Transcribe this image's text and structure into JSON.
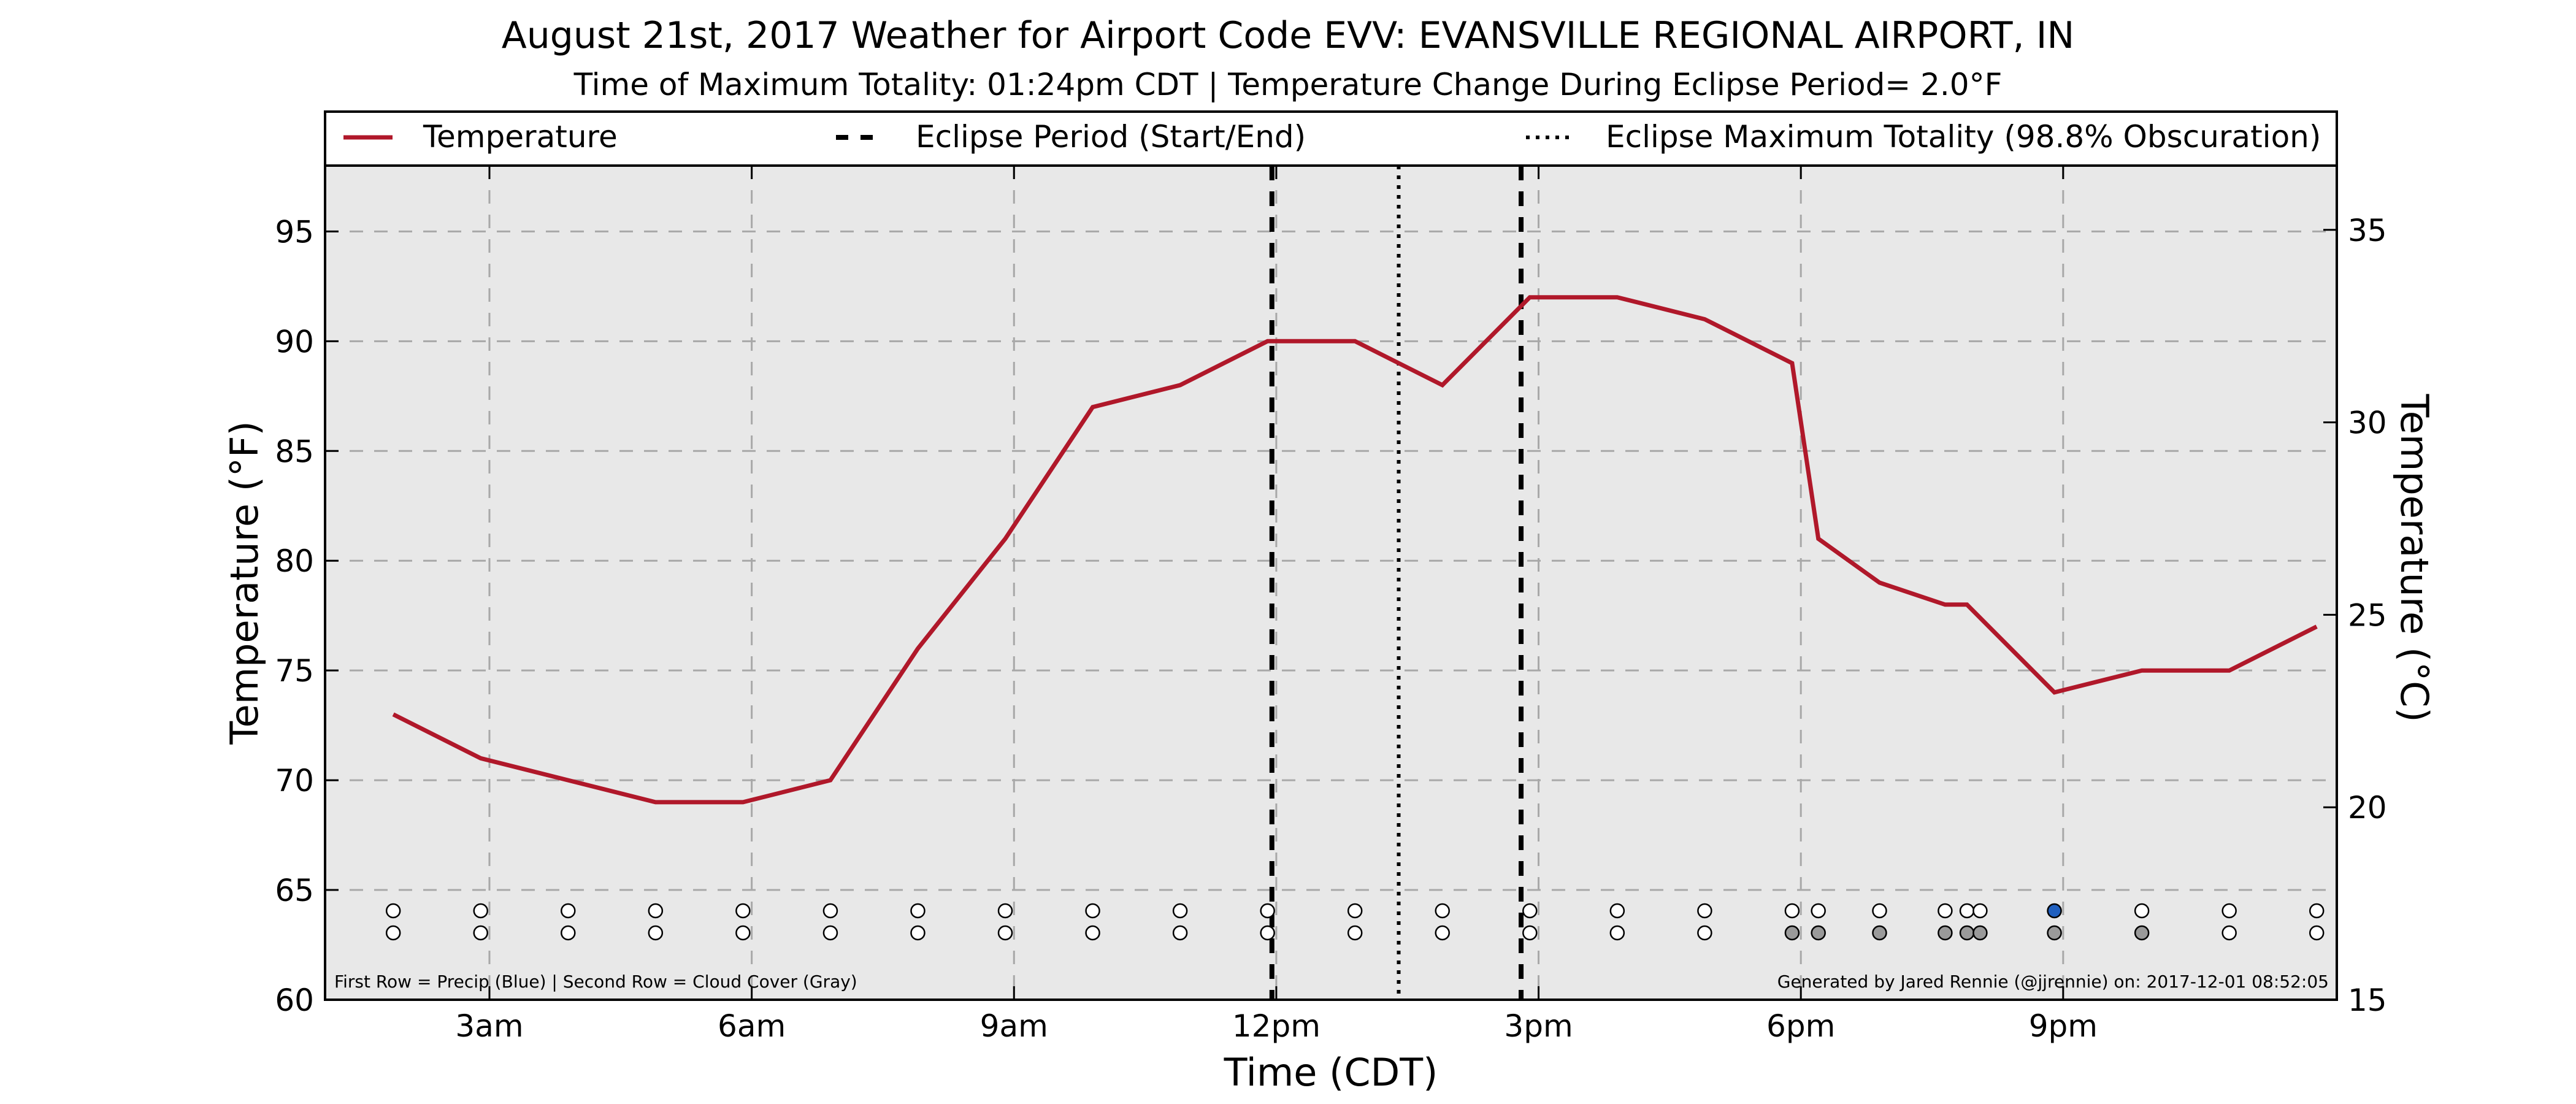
{
  "chart_data": {
    "type": "line",
    "title": "August 21st, 2017 Weather for Airport Code EVV: EVANSVILLE REGIONAL AIRPORT, IN",
    "subtitle": "Time of Maximum Totality: 01:24pm CDT | Temperature Change During Eclipse Period= 2.0°F",
    "xlabel": "Time (CDT)",
    "ylabel": "Temperature (°F)",
    "y2label": "Temperature (°C)",
    "xlim_hours": [
      1.12,
      24.13
    ],
    "ylim": [
      60,
      98
    ],
    "y2lim": [
      15,
      36.67
    ],
    "x_ticks": [
      {
        "hour": 3,
        "label": "3am"
      },
      {
        "hour": 6,
        "label": "6am"
      },
      {
        "hour": 9,
        "label": "9am"
      },
      {
        "hour": 12,
        "label": "12pm"
      },
      {
        "hour": 15,
        "label": "3pm"
      },
      {
        "hour": 18,
        "label": "6pm"
      },
      {
        "hour": 21,
        "label": "9pm"
      }
    ],
    "y_ticks": [
      60,
      65,
      70,
      75,
      80,
      85,
      90,
      95
    ],
    "y2_ticks": [
      15,
      20,
      25,
      30,
      35
    ],
    "grid": true,
    "legend_position": "top",
    "legend": [
      {
        "label": "Temperature",
        "style": "solid",
        "color": "#b0182a"
      },
      {
        "label": "Eclipse Period (Start/End)",
        "style": "dashed",
        "color": "#000000"
      },
      {
        "label": "Eclipse Maximum Totality (98.8% Obscuration)",
        "style": "dotted",
        "color": "#000000"
      }
    ],
    "series": [
      {
        "name": "Temperature",
        "color": "#b0182a",
        "x_hours": [
          1.9,
          2.9,
          3.9,
          4.9,
          5.9,
          6.9,
          7.9,
          8.9,
          9.9,
          10.9,
          11.9,
          12.9,
          13.9,
          14.9,
          15.9,
          16.9,
          17.9,
          18.2,
          18.9,
          19.65,
          19.9,
          20.9,
          21.9,
          22.9,
          23.9
        ],
        "values": [
          73,
          71,
          70,
          69,
          69,
          70,
          76,
          81,
          87,
          88,
          90,
          90,
          88,
          92,
          92,
          91,
          89,
          81,
          79,
          78,
          78,
          74,
          75,
          75,
          77
        ]
      }
    ],
    "eclipse_start_hour": 11.95,
    "eclipse_end_hour": 14.8,
    "eclipse_max_hour": 13.4,
    "precip_row": [
      {
        "hour": 1.9,
        "precip": false
      },
      {
        "hour": 2.9,
        "precip": false
      },
      {
        "hour": 3.9,
        "precip": false
      },
      {
        "hour": 4.9,
        "precip": false
      },
      {
        "hour": 5.9,
        "precip": false
      },
      {
        "hour": 6.9,
        "precip": false
      },
      {
        "hour": 7.9,
        "precip": false
      },
      {
        "hour": 8.9,
        "precip": false
      },
      {
        "hour": 9.9,
        "precip": false
      },
      {
        "hour": 10.9,
        "precip": false
      },
      {
        "hour": 11.9,
        "precip": false
      },
      {
        "hour": 12.9,
        "precip": false
      },
      {
        "hour": 13.9,
        "precip": false
      },
      {
        "hour": 14.9,
        "precip": false
      },
      {
        "hour": 15.9,
        "precip": false
      },
      {
        "hour": 16.9,
        "precip": false
      },
      {
        "hour": 17.9,
        "precip": false
      },
      {
        "hour": 18.2,
        "precip": false
      },
      {
        "hour": 18.9,
        "precip": false
      },
      {
        "hour": 19.65,
        "precip": false
      },
      {
        "hour": 19.9,
        "precip": false
      },
      {
        "hour": 20.05,
        "precip": false
      },
      {
        "hour": 20.9,
        "precip": true
      },
      {
        "hour": 21.9,
        "precip": false
      },
      {
        "hour": 22.9,
        "precip": false
      },
      {
        "hour": 23.9,
        "precip": false
      }
    ],
    "cloud_row": [
      {
        "hour": 1.9,
        "cloud": false
      },
      {
        "hour": 2.9,
        "cloud": false
      },
      {
        "hour": 3.9,
        "cloud": false
      },
      {
        "hour": 4.9,
        "cloud": false
      },
      {
        "hour": 5.9,
        "cloud": false
      },
      {
        "hour": 6.9,
        "cloud": false
      },
      {
        "hour": 7.9,
        "cloud": false
      },
      {
        "hour": 8.9,
        "cloud": false
      },
      {
        "hour": 9.9,
        "cloud": false
      },
      {
        "hour": 10.9,
        "cloud": false
      },
      {
        "hour": 11.9,
        "cloud": false
      },
      {
        "hour": 12.9,
        "cloud": false
      },
      {
        "hour": 13.9,
        "cloud": false
      },
      {
        "hour": 14.9,
        "cloud": false
      },
      {
        "hour": 15.9,
        "cloud": false
      },
      {
        "hour": 16.9,
        "cloud": false
      },
      {
        "hour": 17.9,
        "cloud": true
      },
      {
        "hour": 18.2,
        "cloud": true
      },
      {
        "hour": 18.9,
        "cloud": true
      },
      {
        "hour": 19.65,
        "cloud": true
      },
      {
        "hour": 19.9,
        "cloud": true
      },
      {
        "hour": 20.05,
        "cloud": true
      },
      {
        "hour": 20.9,
        "cloud": true
      },
      {
        "hour": 21.9,
        "cloud": true
      },
      {
        "hour": 22.9,
        "cloud": false
      },
      {
        "hour": 23.9,
        "cloud": false
      }
    ],
    "footnote_left": "First Row = Precip (Blue) | Second Row = Cloud Cover (Gray)",
    "footnote_right": "Generated by Jared Rennie (@jjrennie) on: 2017-12-01 08:52:05",
    "colors": {
      "temperature": "#b0182a",
      "plot_background": "#e8e8e8",
      "precip": "#1f5fbf",
      "cloud": "#9a9a9a",
      "empty_marker": "#ffffff"
    }
  }
}
